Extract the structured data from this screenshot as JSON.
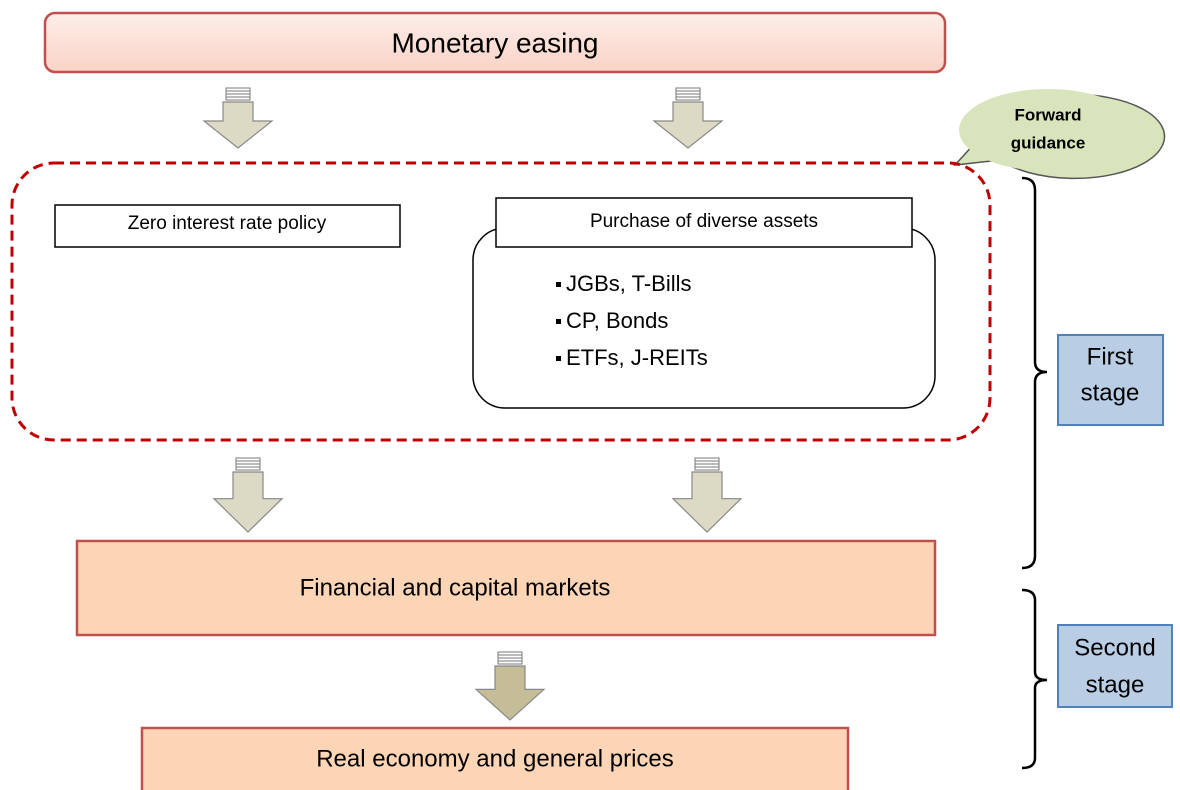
{
  "top": {
    "label": "Monetary easing"
  },
  "bubble": {
    "lines": [
      "Forward",
      "guidance"
    ]
  },
  "zero_rate": {
    "label": "Zero interest rate policy"
  },
  "purchase": {
    "label": "Purchase of diverse assets",
    "items": [
      "JGBs, T-Bills",
      "CP, Bonds",
      "ETFs, J-REITs"
    ]
  },
  "markets": {
    "label": "Financial and capital markets"
  },
  "economy": {
    "label": "Real economy and general prices"
  },
  "stages": [
    {
      "lines": [
        "First",
        "stage"
      ]
    },
    {
      "lines": [
        "Second",
        "stage"
      ]
    }
  ]
}
